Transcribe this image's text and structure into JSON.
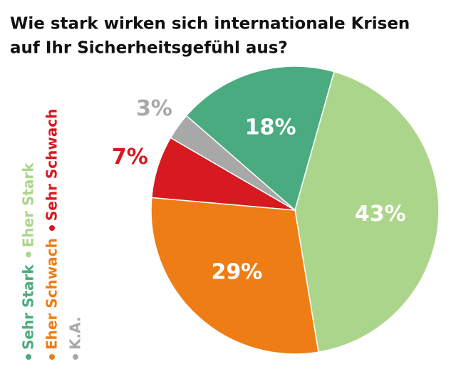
{
  "chart_data": {
    "type": "pie",
    "title": [
      "Wie stark wirken sich internationale Krisen",
      "auf Ihr Sicherheitsgefühl aus?"
    ],
    "categories": [
      "Sehr Stark",
      "Eher Stark",
      "Eher Schwach",
      "Sehr Schwach",
      "K.A."
    ],
    "values": [
      18,
      43,
      29,
      7,
      3
    ],
    "value_labels": [
      "18%",
      "43%",
      "29%",
      "7%",
      "3%"
    ],
    "colors": [
      "#4aab80",
      "#acd58c",
      "#ef7d16",
      "#d71920",
      "#a8a8a8"
    ]
  }
}
